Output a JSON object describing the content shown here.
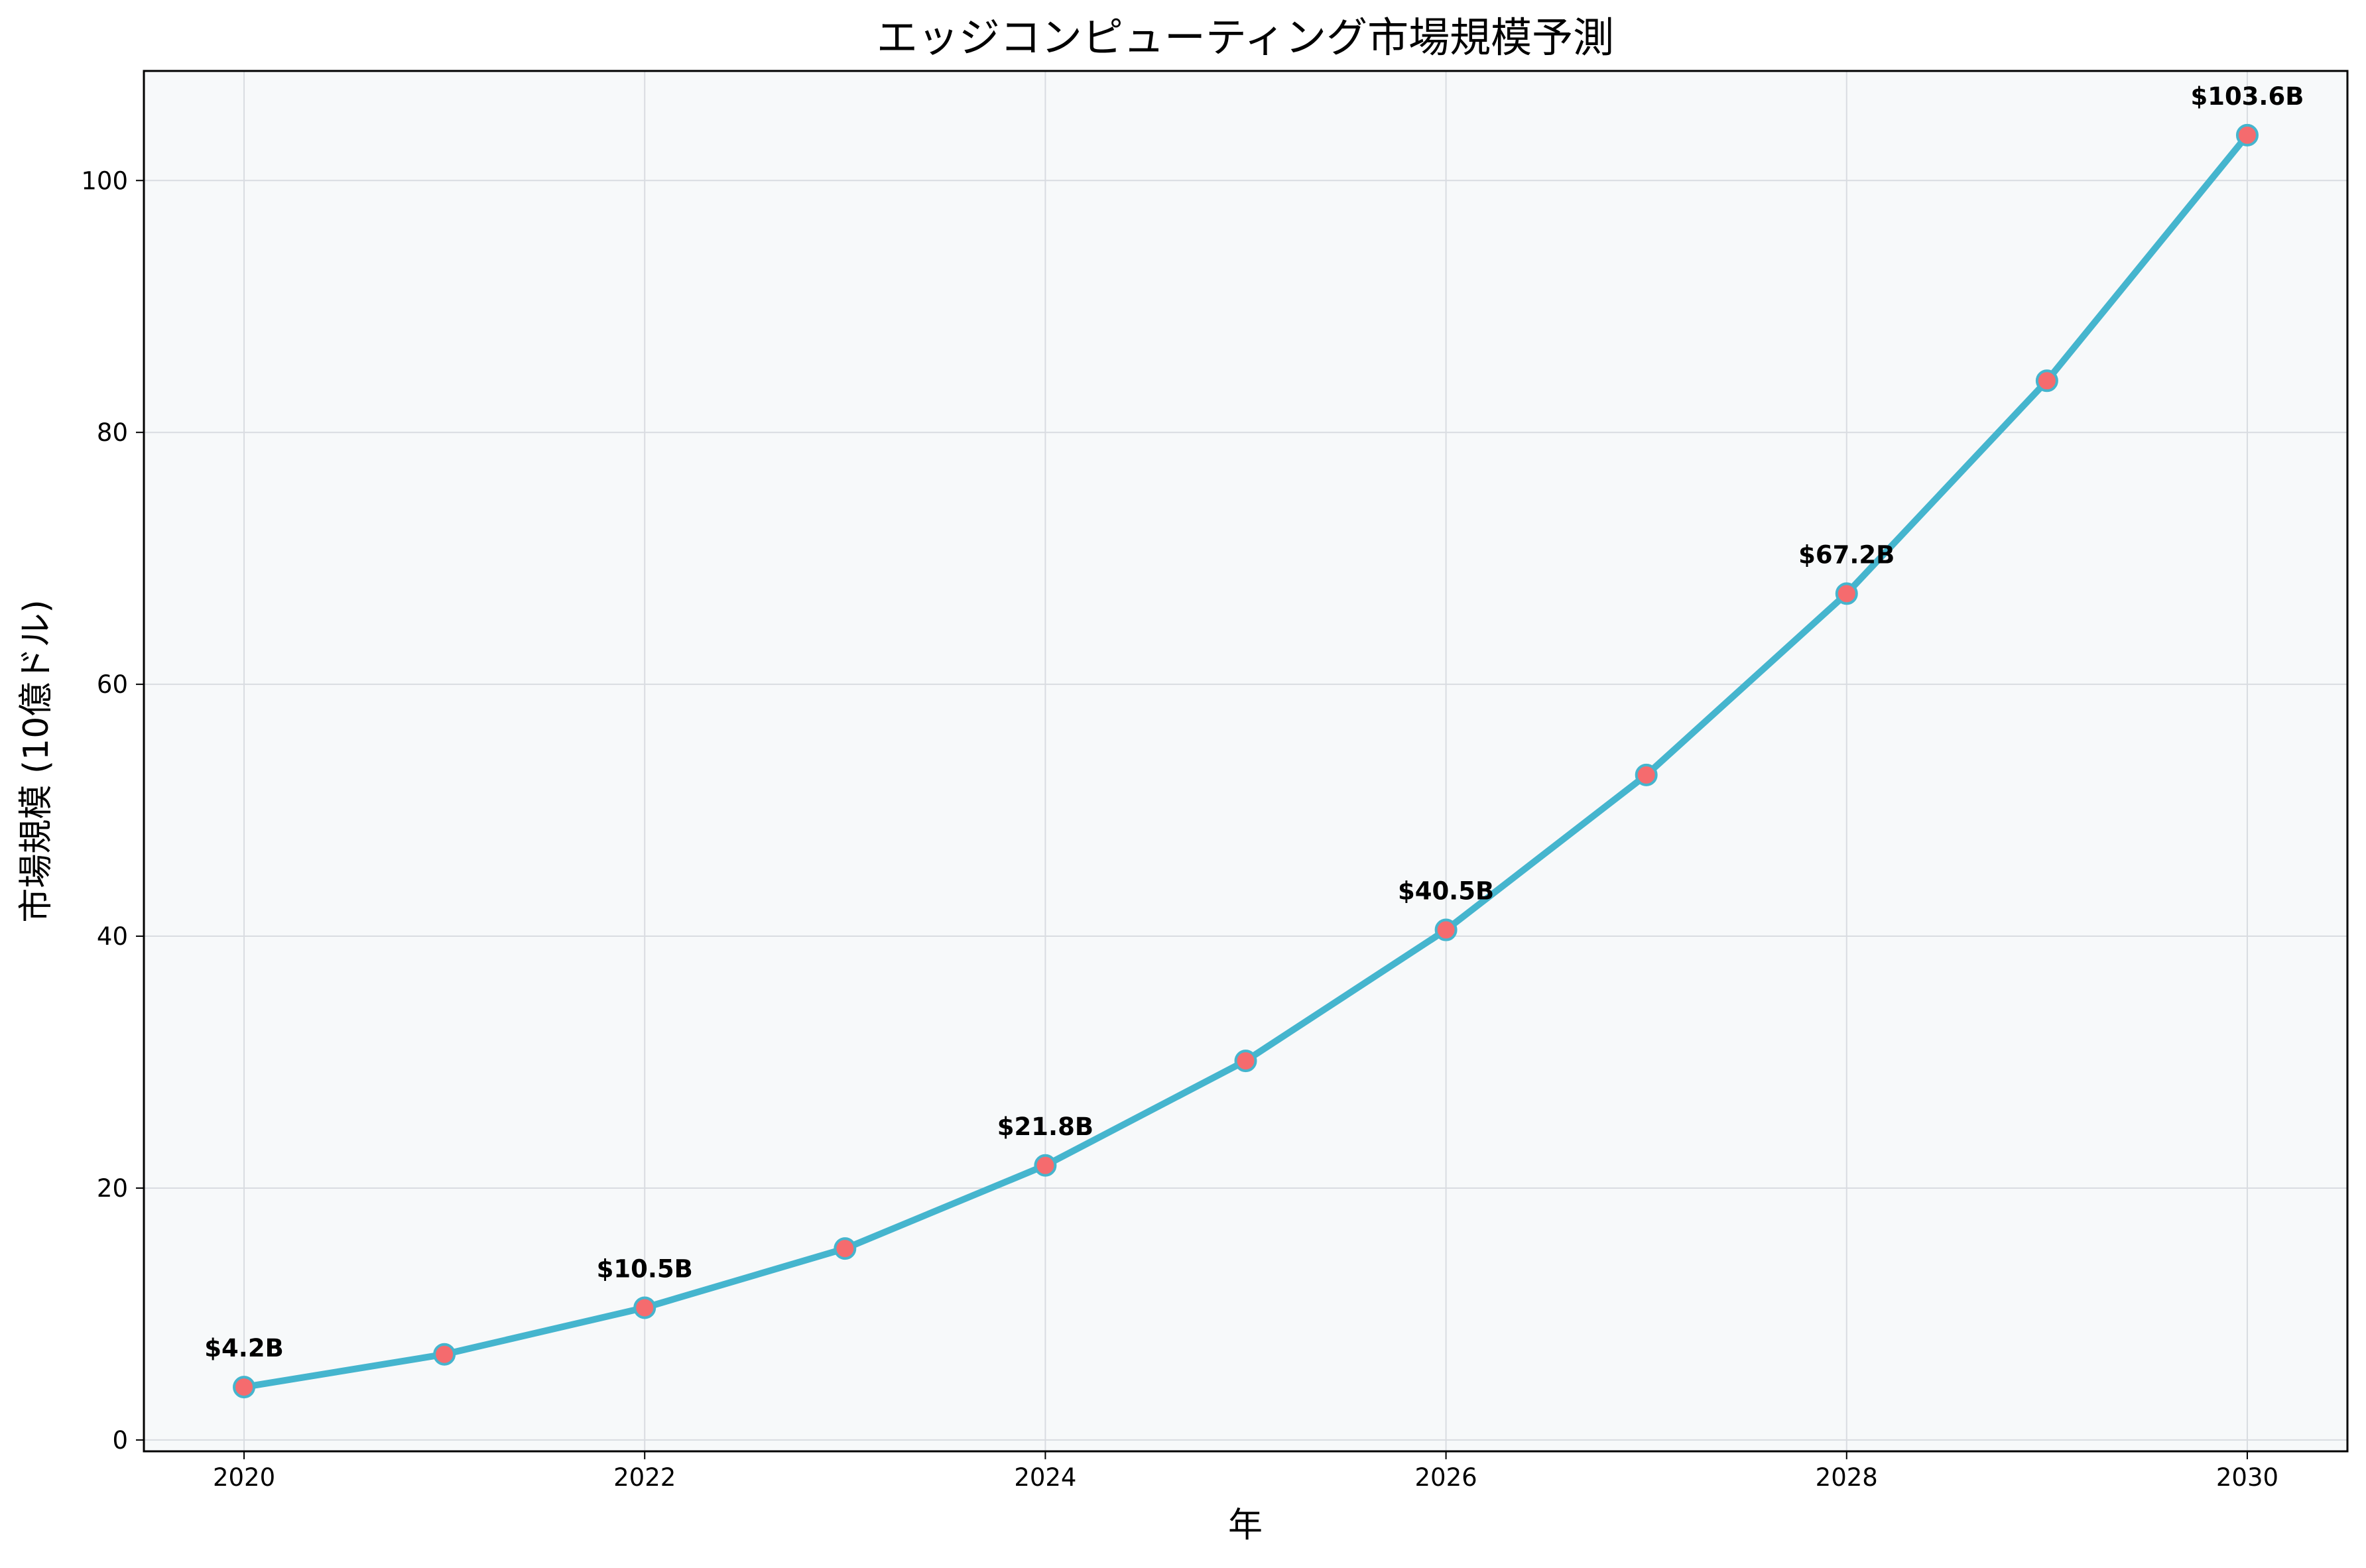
{
  "chart_data": {
    "type": "line",
    "title": "エッジコンピューティング市場規模予測",
    "xlabel": "年",
    "ylabel": "市場規模 (10億ドル)",
    "x": [
      2020,
      2021,
      2022,
      2023,
      2024,
      2025,
      2026,
      2027,
      2028,
      2029,
      2030
    ],
    "series": [
      {
        "values": [
          4.2,
          6.8,
          10.5,
          15.2,
          21.8,
          30.1,
          40.5,
          52.8,
          67.2,
          84.1,
          103.6
        ]
      }
    ],
    "data_labels": [
      {
        "x": 2020,
        "text": "$4.2B"
      },
      {
        "x": 2022,
        "text": "$10.5B"
      },
      {
        "x": 2024,
        "text": "$21.8B"
      },
      {
        "x": 2026,
        "text": "$40.5B"
      },
      {
        "x": 2028,
        "text": "$67.2B"
      },
      {
        "x": 2030,
        "text": "$103.6B"
      }
    ],
    "xlim": [
      2019.5,
      2030.5
    ],
    "ylim": [
      -0.9,
      108.7
    ],
    "xticks": [
      2020,
      2022,
      2024,
      2026,
      2028,
      2030
    ],
    "yticks": [
      0,
      20,
      40,
      60,
      80,
      100
    ],
    "grid": true,
    "colors": {
      "line": "#45b5ce",
      "marker_fill": "#f56b6e",
      "marker_edge": "#45b5ce",
      "plot_background": "#f7f9fa",
      "grid": "#d9dce1"
    }
  }
}
